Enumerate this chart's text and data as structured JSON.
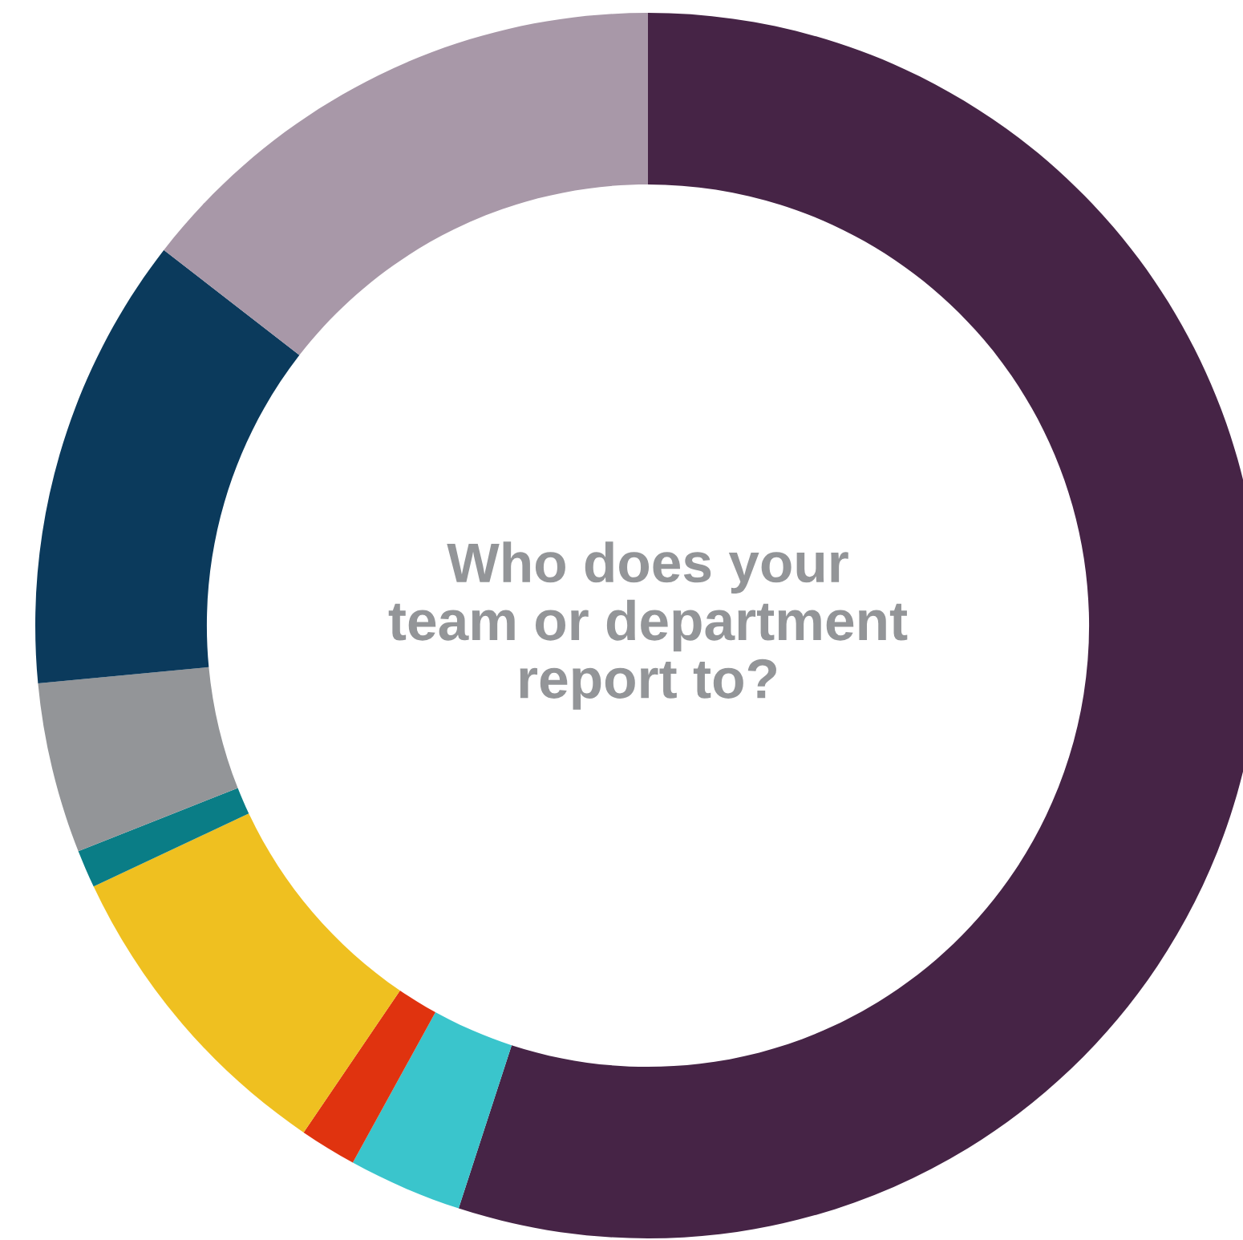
{
  "chart_data": {
    "type": "donut",
    "title": "Who does your\nteam or department\nreport to?",
    "categories": [
      null,
      null,
      null,
      null,
      null,
      null,
      null,
      null
    ],
    "values": [
      55,
      3,
      1.5,
      8.5,
      1,
      4.5,
      12,
      14.5
    ],
    "colors": [
      "#462446",
      "#3ac5cc",
      "#e0330f",
      "#efc020",
      "#0a7d86",
      "#939598",
      "#0b3a5c",
      "#a898a8"
    ]
  }
}
